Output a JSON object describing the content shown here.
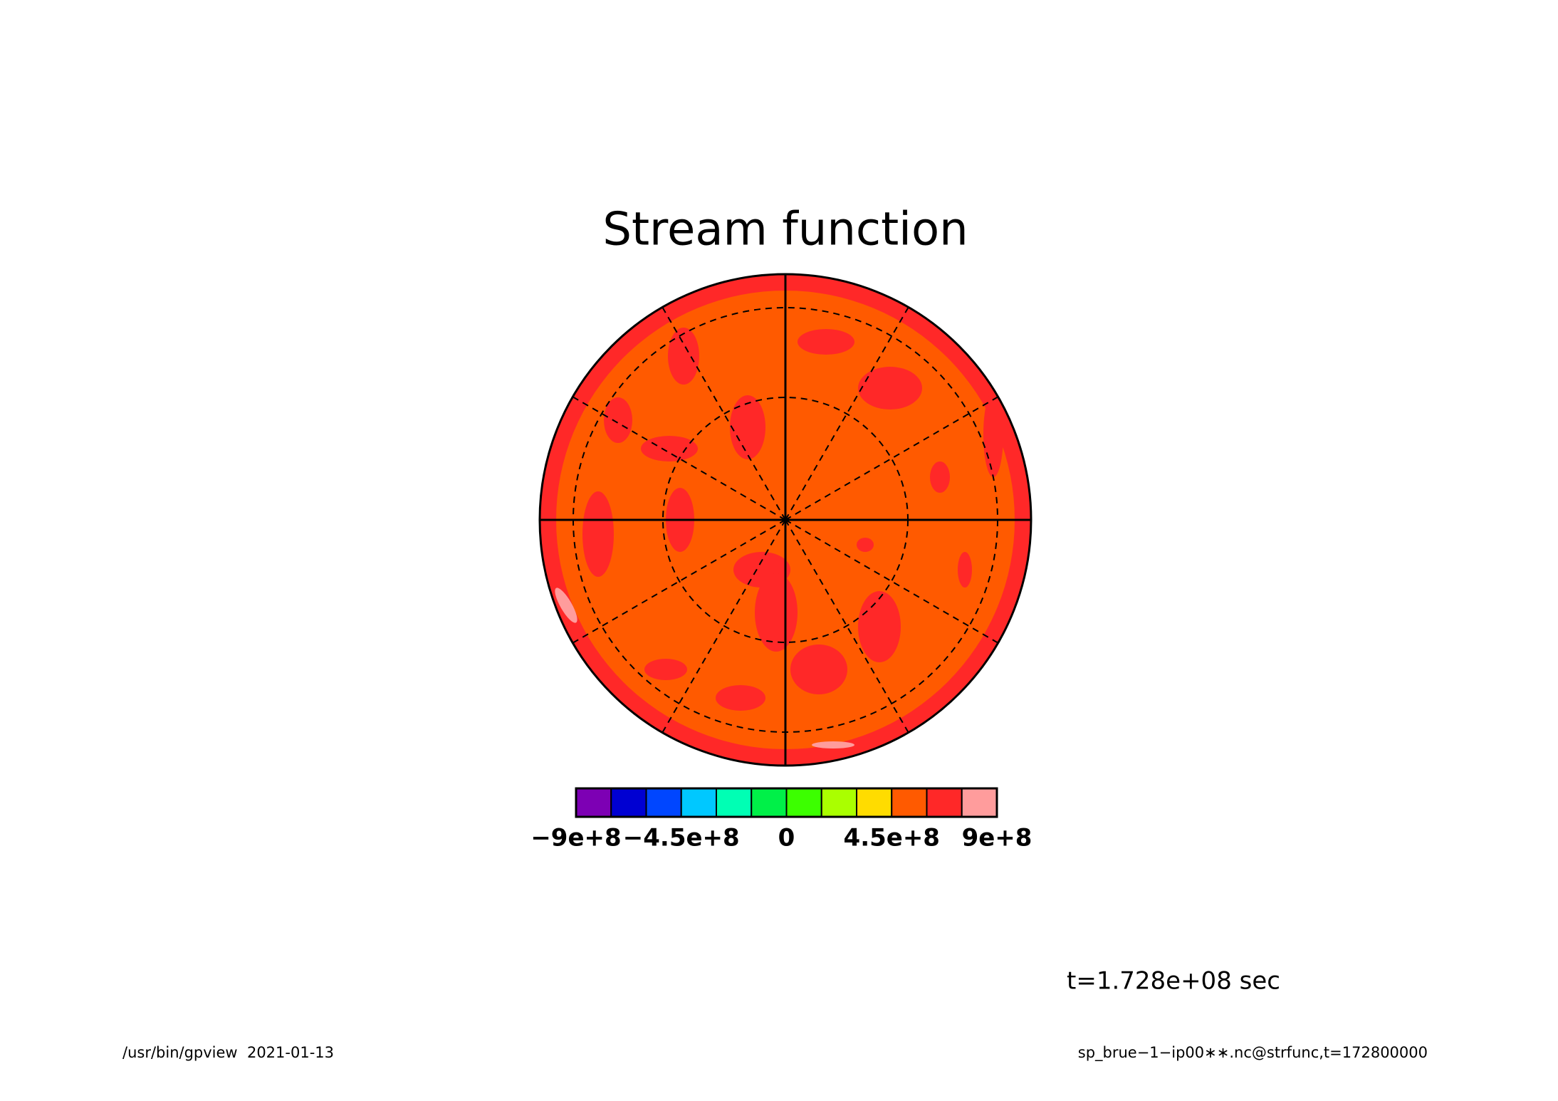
{
  "chart_data": {
    "type": "contour",
    "title": "Stream function",
    "zlim": [
      -900000000,
      900000000
    ],
    "colors": [
      "#7d00b4",
      "#0000d2",
      "#0046ff",
      "#00c8ff",
      "#00ffb4",
      "#00f048",
      "#3cff00",
      "#aaff00",
      "#ffdc00",
      "#ff5a00",
      "#ff2828",
      "#ff9c9c"
    ],
    "zticks": [
      {
        "value": -900000000,
        "label": "−9e+8"
      },
      {
        "value": -450000000,
        "label": "−4.5e+8"
      },
      0,
      {
        "value": 450000000,
        "label": "4.5e+8"
      },
      {
        "value": 900000000,
        "label": "9e+8"
      }
    ],
    "annotation": "t=1.728e+08 sec",
    "footer_left": "/usr/bin/gpview  2021-01-13",
    "footer_right": "sp_brue−1−ip00∗∗.nc@strfunc,t=172800000"
  }
}
